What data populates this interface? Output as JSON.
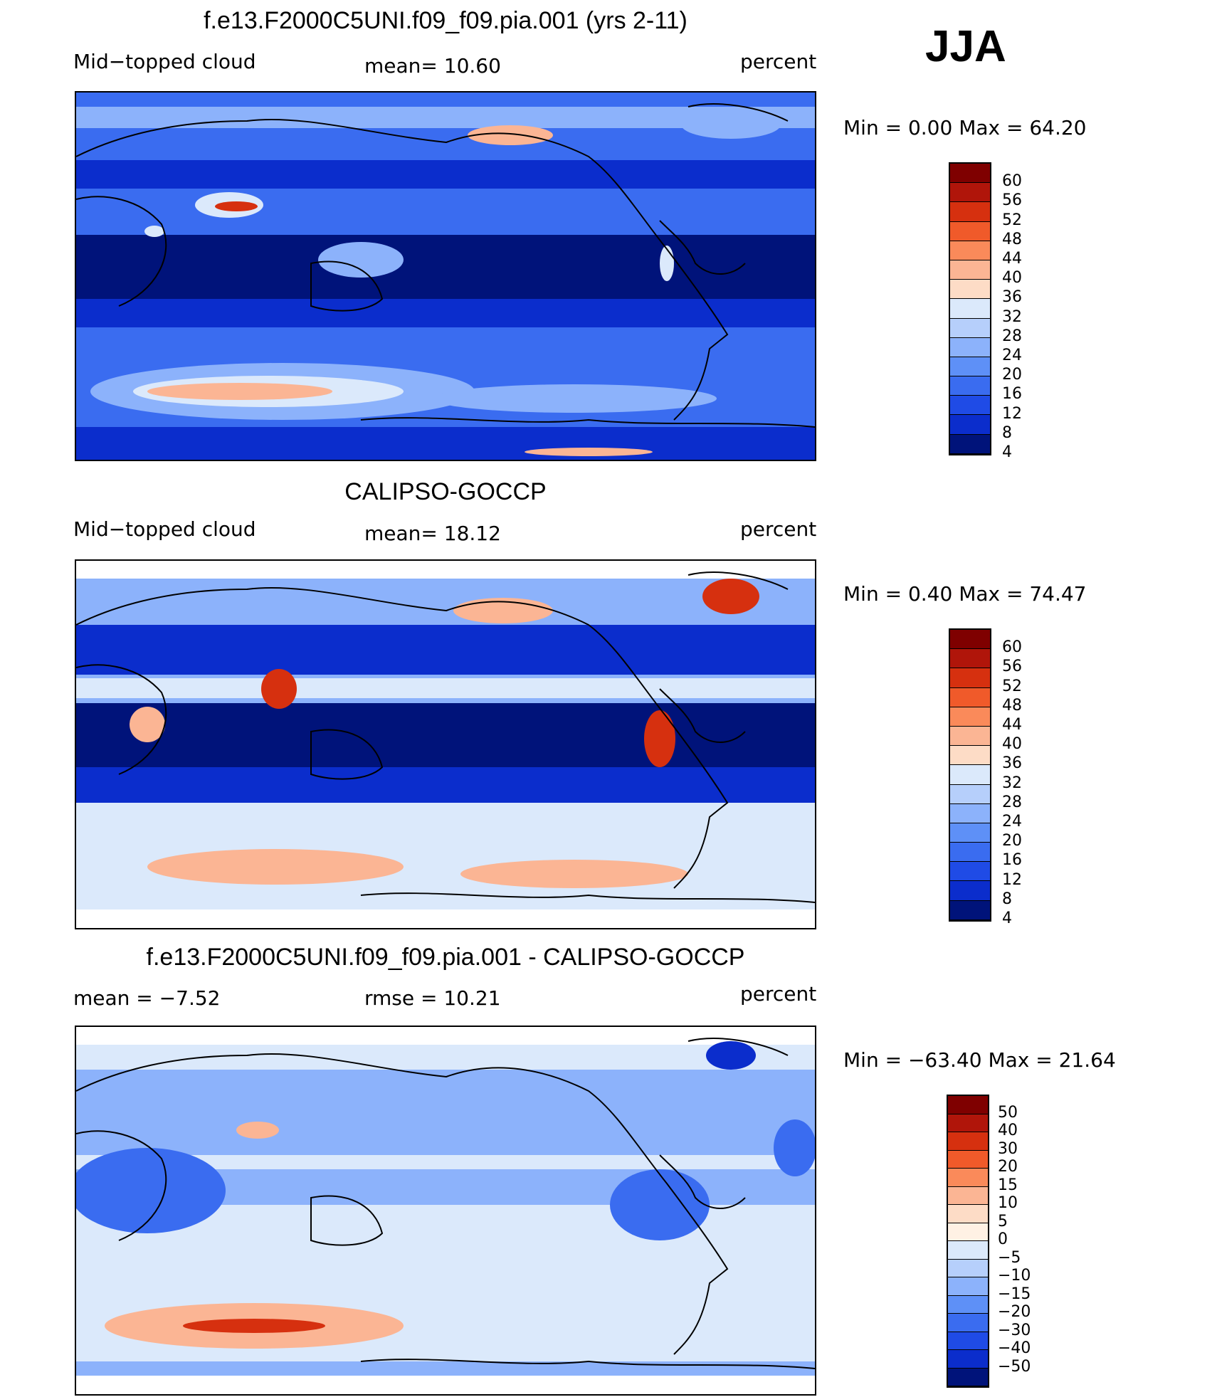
{
  "season": "JJA",
  "panels": [
    {
      "title": "f.e13.F2000C5UNI.f09_f09.pia.001 (yrs 2-11)",
      "left_label": "Mid−topped  cloud",
      "center_label": "mean=   10.60",
      "right_label": "percent",
      "min_label": "Min  =      0.00  Max  =    64.20",
      "colorbar_ticks": [
        "60",
        "56",
        "52",
        "48",
        "44",
        "40",
        "36",
        "32",
        "28",
        "24",
        "20",
        "16",
        "12",
        "8",
        "4"
      ],
      "colorbar_colors": [
        "#7f0000",
        "#b0150a",
        "#d6300f",
        "#f05a2a",
        "#fa8a5a",
        "#fbb594",
        "#fddcc6",
        "#dbe9fb",
        "#b6cffb",
        "#8cb2fb",
        "#5e90f7",
        "#3a6cf0",
        "#1f4be6",
        "#0b2dcc",
        "#00137a"
      ]
    },
    {
      "title": "CALIPSO-GOCCP",
      "left_label": "Mid−topped  cloud",
      "center_label": "mean=   18.12",
      "right_label": "percent",
      "min_label": "Min  =      0.40  Max  =    74.47",
      "colorbar_ticks": [
        "60",
        "56",
        "52",
        "48",
        "44",
        "40",
        "36",
        "32",
        "28",
        "24",
        "20",
        "16",
        "12",
        "8",
        "4"
      ],
      "colorbar_colors": [
        "#7f0000",
        "#b0150a",
        "#d6300f",
        "#f05a2a",
        "#fa8a5a",
        "#fbb594",
        "#fddcc6",
        "#dbe9fb",
        "#b6cffb",
        "#8cb2fb",
        "#5e90f7",
        "#3a6cf0",
        "#1f4be6",
        "#0b2dcc",
        "#00137a"
      ]
    },
    {
      "title": "f.e13.F2000C5UNI.f09_f09.pia.001 - CALIPSO-GOCCP",
      "left_label": "mean  =    −7.52",
      "center_label": "rmse  =    10.21",
      "right_label": "percent",
      "min_label": "Min  =  −63.40  Max  =    21.64",
      "colorbar_ticks": [
        "50",
        "40",
        "30",
        "20",
        "15",
        "10",
        "5",
        "0",
        "−5",
        "−10",
        "−15",
        "−20",
        "−30",
        "−40",
        "−50"
      ],
      "colorbar_colors": [
        "#7f0000",
        "#b0150a",
        "#d6300f",
        "#f05a2a",
        "#fa8a5a",
        "#fbb594",
        "#fddcc6",
        "#fff1e4",
        "#dbe9fb",
        "#b6cffb",
        "#8cb2fb",
        "#5e90f7",
        "#3a6cf0",
        "#1f4be6",
        "#0b2dcc",
        "#00137a"
      ]
    }
  ],
  "map_colors": {
    "deep": "#00137a",
    "dark": "#0b2dcc",
    "mid": "#3a6cf0",
    "light": "#8cb2fb",
    "pale": "#dbe9fb",
    "warm": "#fbb594",
    "hot": "#d6300f"
  }
}
